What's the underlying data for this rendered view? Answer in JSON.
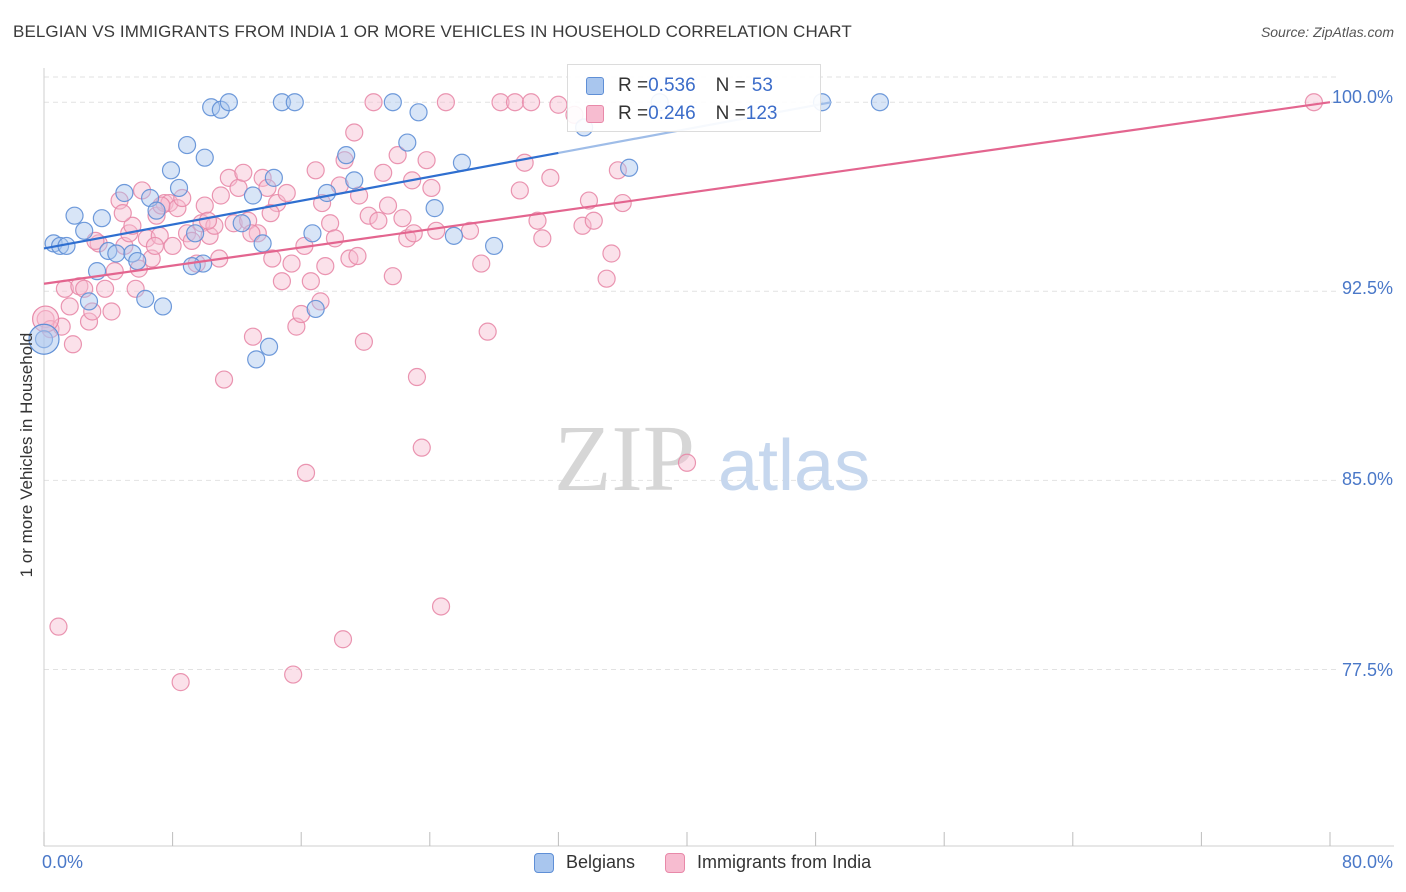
{
  "title": "BELGIAN VS IMMIGRANTS FROM INDIA 1 OR MORE VEHICLES IN HOUSEHOLD CORRELATION CHART",
  "source": "Source: ZipAtlas.com",
  "watermark": {
    "zip": "ZIP",
    "atlas": "atlas"
  },
  "legend_top": {
    "rows": [
      {
        "r_label": "R = ",
        "r_value": "0.536",
        "n_label": "N = ",
        "n_value": "53"
      },
      {
        "r_label": "R = ",
        "r_value": "0.246",
        "n_label": "N = ",
        "n_value": "123"
      }
    ]
  },
  "legend_bottom": {
    "items": [
      "Belgians",
      "Immigrants from India"
    ]
  },
  "colors": {
    "belgians_fill": "#a9c6ee",
    "belgians_stroke": "#5f8fd6",
    "belgians_line": "#2f6fd0",
    "india_fill": "#f7bcd0",
    "india_stroke": "#e889a9",
    "india_line": "#e3658f",
    "tick_label": "#4a78c8",
    "grid": "#e2e2e2"
  },
  "chart_data": {
    "type": "scatter",
    "title": "BELGIAN VS IMMIGRANTS FROM INDIA 1 OR MORE VEHICLES IN HOUSEHOLD CORRELATION CHART",
    "xlabel": "",
    "ylabel": "1 or more Vehicles in Household",
    "xlim": [
      0,
      80
    ],
    "ylim": [
      70.5,
      101.0
    ],
    "x_tick_labels": [
      "0.0%",
      "80.0%"
    ],
    "y_ticks": [
      100.0,
      92.5,
      85.0,
      77.5
    ],
    "y_tick_labels": [
      "100.0%",
      "92.5%",
      "85.0%",
      "77.5%"
    ],
    "grid": true,
    "legend_position": "top-center",
    "series": [
      {
        "name": "Belgians",
        "r": 0.536,
        "n": 53,
        "trend": {
          "x": [
            0,
            49
          ],
          "y": [
            94.2,
            100.0
          ]
        },
        "points": [
          [
            0.0,
            90.6
          ],
          [
            0.6,
            94.4
          ],
          [
            1.0,
            94.3
          ],
          [
            1.4,
            94.3
          ],
          [
            1.9,
            95.5
          ],
          [
            2.5,
            94.9
          ],
          [
            2.8,
            92.1
          ],
          [
            3.3,
            93.3
          ],
          [
            3.6,
            95.4
          ],
          [
            4.0,
            94.1
          ],
          [
            4.5,
            94.0
          ],
          [
            5.0,
            96.4
          ],
          [
            5.5,
            94.0
          ],
          [
            5.8,
            93.7
          ],
          [
            6.3,
            92.2
          ],
          [
            6.6,
            96.2
          ],
          [
            7.0,
            95.7
          ],
          [
            7.4,
            91.9
          ],
          [
            7.9,
            97.3
          ],
          [
            8.4,
            96.6
          ],
          [
            8.9,
            98.3
          ],
          [
            9.4,
            94.8
          ],
          [
            9.9,
            93.6
          ],
          [
            10.0,
            97.8
          ],
          [
            10.4,
            99.8
          ],
          [
            11.0,
            99.7
          ],
          [
            11.5,
            100.0
          ],
          [
            12.3,
            95.2
          ],
          [
            13.0,
            96.3
          ],
          [
            13.6,
            94.4
          ],
          [
            14.0,
            90.3
          ],
          [
            14.3,
            97.0
          ],
          [
            14.8,
            100.0
          ],
          [
            15.6,
            100.0
          ],
          [
            16.7,
            94.8
          ],
          [
            16.9,
            91.8
          ],
          [
            17.6,
            96.4
          ],
          [
            18.8,
            97.9
          ],
          [
            19.3,
            96.9
          ],
          [
            21.7,
            100.0
          ],
          [
            22.6,
            98.4
          ],
          [
            23.3,
            99.6
          ],
          [
            24.3,
            95.8
          ],
          [
            25.5,
            94.7
          ],
          [
            26.0,
            97.6
          ],
          [
            28.0,
            94.3
          ],
          [
            33.6,
            99.0
          ],
          [
            36.4,
            97.4
          ],
          [
            38.3,
            100.0
          ],
          [
            48.4,
            100.0
          ],
          [
            13.2,
            89.8
          ],
          [
            9.2,
            93.5
          ],
          [
            52.0,
            100.0
          ]
        ]
      },
      {
        "name": "Immigrants from India",
        "r": 0.246,
        "n": 123,
        "trend": {
          "x": [
            0,
            80
          ],
          "y": [
            92.8,
            100.0
          ]
        },
        "points": [
          [
            0.1,
            91.4
          ],
          [
            0.4,
            91.0
          ],
          [
            0.9,
            79.2
          ],
          [
            1.1,
            91.1
          ],
          [
            1.3,
            92.6
          ],
          [
            1.8,
            90.4
          ],
          [
            2.2,
            92.7
          ],
          [
            2.5,
            92.6
          ],
          [
            2.8,
            91.3
          ],
          [
            3.0,
            91.7
          ],
          [
            3.4,
            94.4
          ],
          [
            3.8,
            92.6
          ],
          [
            4.2,
            91.7
          ],
          [
            4.4,
            93.3
          ],
          [
            4.7,
            96.1
          ],
          [
            5.0,
            94.3
          ],
          [
            5.3,
            94.8
          ],
          [
            5.5,
            95.1
          ],
          [
            5.7,
            92.6
          ],
          [
            5.9,
            93.4
          ],
          [
            6.1,
            96.5
          ],
          [
            6.4,
            94.6
          ],
          [
            6.7,
            93.8
          ],
          [
            7.0,
            95.5
          ],
          [
            7.2,
            94.7
          ],
          [
            7.5,
            96.0
          ],
          [
            7.8,
            96.0
          ],
          [
            8.0,
            94.3
          ],
          [
            8.3,
            95.8
          ],
          [
            8.6,
            96.2
          ],
          [
            8.9,
            94.8
          ],
          [
            9.2,
            94.5
          ],
          [
            9.5,
            93.6
          ],
          [
            9.8,
            95.2
          ],
          [
            10.0,
            95.9
          ],
          [
            10.3,
            94.7
          ],
          [
            10.6,
            95.1
          ],
          [
            10.9,
            93.8
          ],
          [
            11.2,
            89.0
          ],
          [
            11.5,
            97.0
          ],
          [
            11.8,
            95.2
          ],
          [
            12.1,
            96.6
          ],
          [
            12.4,
            97.2
          ],
          [
            12.7,
            95.3
          ],
          [
            13.0,
            90.7
          ],
          [
            13.3,
            94.8
          ],
          [
            13.6,
            97.0
          ],
          [
            13.9,
            96.6
          ],
          [
            14.2,
            93.8
          ],
          [
            14.5,
            96.0
          ],
          [
            14.8,
            92.9
          ],
          [
            15.1,
            96.4
          ],
          [
            15.4,
            93.6
          ],
          [
            15.7,
            91.1
          ],
          [
            16.0,
            91.6
          ],
          [
            16.3,
            85.3
          ],
          [
            16.6,
            92.9
          ],
          [
            16.9,
            97.3
          ],
          [
            17.2,
            92.1
          ],
          [
            17.5,
            93.5
          ],
          [
            17.8,
            95.2
          ],
          [
            18.1,
            94.6
          ],
          [
            18.4,
            96.7
          ],
          [
            18.7,
            97.7
          ],
          [
            19.0,
            93.8
          ],
          [
            19.3,
            98.8
          ],
          [
            19.6,
            96.3
          ],
          [
            19.9,
            90.5
          ],
          [
            20.2,
            95.5
          ],
          [
            20.5,
            100.0
          ],
          [
            20.8,
            95.3
          ],
          [
            21.1,
            97.2
          ],
          [
            21.4,
            95.9
          ],
          [
            21.7,
            93.1
          ],
          [
            22.0,
            97.9
          ],
          [
            22.3,
            95.4
          ],
          [
            22.6,
            94.6
          ],
          [
            22.9,
            96.9
          ],
          [
            23.2,
            89.1
          ],
          [
            23.5,
            86.3
          ],
          [
            23.8,
            97.7
          ],
          [
            24.1,
            96.6
          ],
          [
            24.4,
            94.9
          ],
          [
            24.7,
            80.0
          ],
          [
            25.0,
            100.0
          ],
          [
            27.2,
            93.6
          ],
          [
            27.6,
            90.9
          ],
          [
            28.4,
            100.0
          ],
          [
            29.3,
            100.0
          ],
          [
            29.6,
            96.5
          ],
          [
            29.9,
            97.6
          ],
          [
            30.3,
            100.0
          ],
          [
            30.7,
            95.3
          ],
          [
            31.5,
            97.0
          ],
          [
            32.0,
            99.9
          ],
          [
            33.0,
            99.5
          ],
          [
            33.5,
            95.1
          ],
          [
            33.9,
            96.1
          ],
          [
            34.2,
            95.3
          ],
          [
            35.0,
            93.0
          ],
          [
            35.3,
            94.0
          ],
          [
            35.7,
            97.3
          ],
          [
            36.0,
            96.0
          ],
          [
            40.0,
            85.7
          ],
          [
            8.5,
            77.0
          ],
          [
            15.5,
            77.3
          ],
          [
            18.6,
            78.7
          ],
          [
            3.2,
            94.5
          ],
          [
            1.6,
            91.9
          ],
          [
            6.9,
            94.3
          ],
          [
            10.2,
            95.3
          ],
          [
            12.9,
            94.8
          ],
          [
            16.2,
            94.3
          ],
          [
            19.5,
            93.9
          ],
          [
            23.0,
            94.8
          ],
          [
            26.5,
            94.9
          ],
          [
            31.0,
            94.6
          ],
          [
            4.9,
            95.6
          ],
          [
            7.3,
            95.9
          ],
          [
            11.0,
            96.3
          ],
          [
            14.1,
            95.6
          ],
          [
            17.3,
            96.0
          ],
          [
            79.0,
            100.0
          ]
        ]
      }
    ]
  }
}
